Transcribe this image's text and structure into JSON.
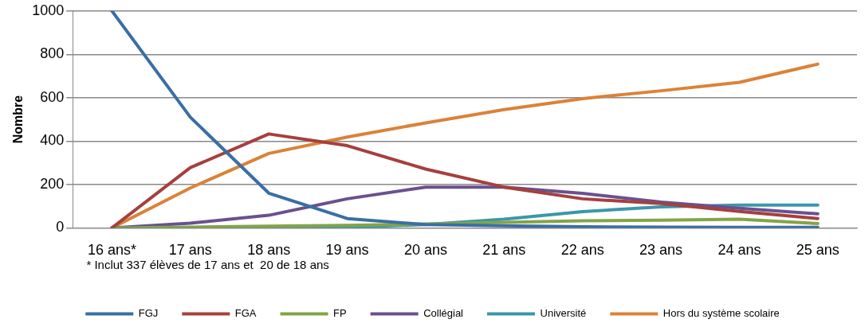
{
  "chart_data": {
    "type": "line",
    "ylabel": "Nombre",
    "categories": [
      "16 ans*",
      "17 ans",
      "18 ans",
      "19 ans",
      "20 ans",
      "21 ans",
      "22 ans",
      "23 ans",
      "24 ans",
      "25 ans"
    ],
    "ylim": [
      0,
      1000
    ],
    "yticks": [
      0,
      200,
      400,
      600,
      800,
      1000
    ],
    "grid": "y",
    "legend": "bottom",
    "marker": "none",
    "line_style": "solid",
    "annotations": [
      "* Inclut 337 élèves de 17 ans et  20 de 18 ans"
    ],
    "series": [
      {
        "name": "FGJ",
        "color": "#3a6ea5",
        "values": [
          1000,
          510,
          160,
          43,
          15,
          10,
          5,
          3,
          2,
          2
        ]
      },
      {
        "name": "FGA",
        "color": "#a5403d",
        "values": [
          0,
          278,
          433,
          379,
          271,
          188,
          134,
          112,
          76,
          43
        ]
      },
      {
        "name": "FP",
        "color": "#83a447",
        "values": [
          0,
          3,
          8,
          12,
          18,
          25,
          33,
          35,
          40,
          20
        ]
      },
      {
        "name": "Collégial",
        "color": "#6a5090",
        "values": [
          0,
          22,
          58,
          134,
          188,
          188,
          159,
          119,
          90,
          65
        ]
      },
      {
        "name": "Université",
        "color": "#3b97aa",
        "values": [
          0,
          0,
          1,
          3,
          15,
          40,
          75,
          97,
          105,
          105
        ]
      },
      {
        "name": "Hors du système scolaire",
        "color": "#db8238",
        "values": [
          0,
          184,
          343,
          419,
          484,
          545,
          596,
          632,
          671,
          755
        ]
      }
    ]
  }
}
